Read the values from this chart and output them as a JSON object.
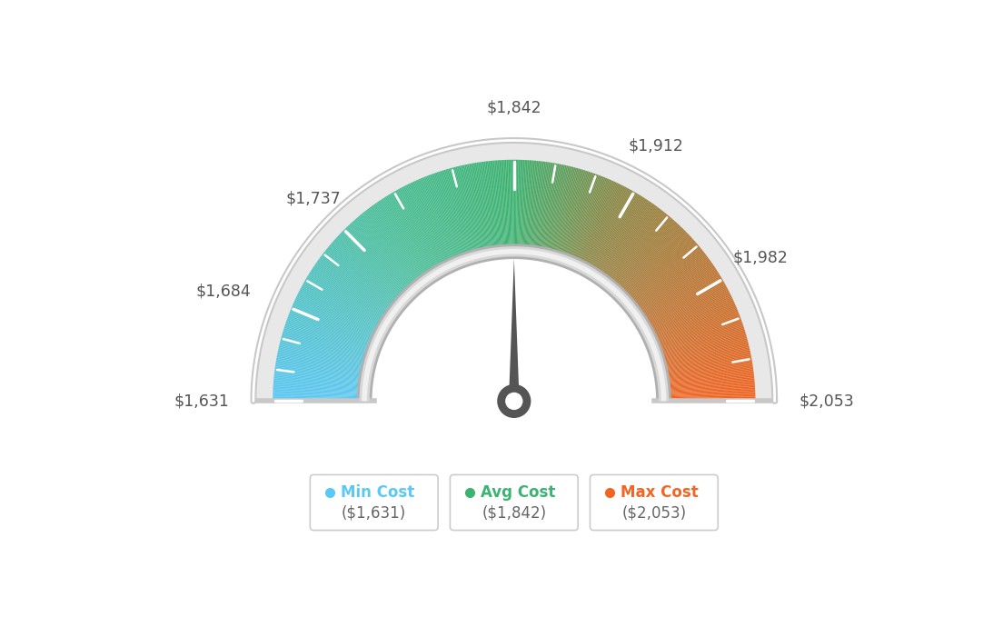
{
  "min_value": 1631,
  "max_value": 2053,
  "avg_value": 1842,
  "labels": [
    "$1,631",
    "$1,684",
    "$1,737",
    "$1,842",
    "$1,912",
    "$1,982",
    "$2,053"
  ],
  "label_values": [
    1631,
    1684,
    1737,
    1842,
    1912,
    1982,
    2053
  ],
  "legend_min_label": "Min Cost",
  "legend_avg_label": "Avg Cost",
  "legend_max_label": "Max Cost",
  "legend_min_value": "($1,631)",
  "legend_avg_value": "($1,842)",
  "legend_max_value": "($2,053)",
  "color_min": "#5BC8F5",
  "color_avg_legend": "#3CB371",
  "color_max": "#F26522",
  "background_color": "#FFFFFF",
  "needle_color": "#555555",
  "outer_border_color": "#cccccc",
  "inner_border_color_dark": "#aaaaaa",
  "inner_border_color_light": "#e0e0e0"
}
